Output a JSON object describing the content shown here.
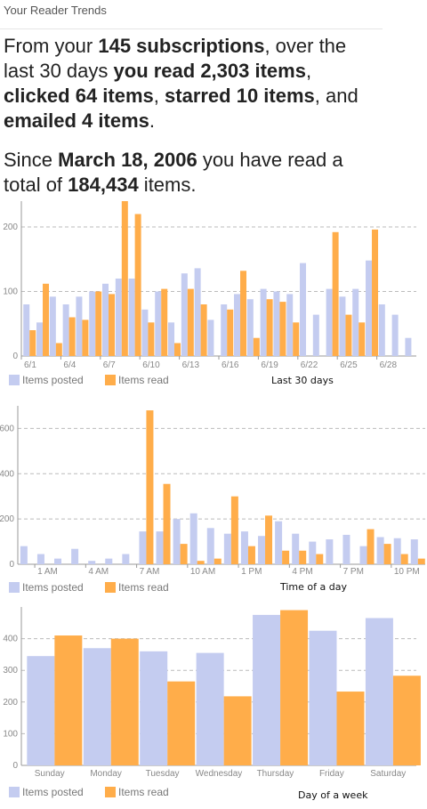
{
  "header": {
    "title": "Your Reader Trends"
  },
  "summary": {
    "p1": [
      "From your ",
      "145 subscriptions",
      ", over the last 30 days ",
      "you read 2,303 items",
      ", ",
      "clicked 64 items",
      ", ",
      "starred 10 items",
      ", and ",
      "emailed 4 items",
      "."
    ],
    "p2": [
      "Since ",
      "March 18, 2006",
      " you have read a total of ",
      "184,434",
      " items."
    ]
  },
  "colors": {
    "posted": "#c4ccf0",
    "read": "#ffad4a",
    "grid": "#bbbbbb",
    "axis": "#999999"
  },
  "chart_data": [
    {
      "id": "last-30-days",
      "type": "bar",
      "caption": "Last 30 days",
      "ylim": [
        0,
        240
      ],
      "yticks": [
        0,
        100,
        200
      ],
      "categories": [
        "6/1",
        "6/2",
        "6/3",
        "6/4",
        "6/5",
        "6/6",
        "6/7",
        "6/8",
        "6/9",
        "6/10",
        "6/11",
        "6/12",
        "6/13",
        "6/14",
        "6/15",
        "6/16",
        "6/17",
        "6/18",
        "6/19",
        "6/20",
        "6/21",
        "6/22",
        "6/23",
        "6/24",
        "6/25",
        "6/26",
        "6/27",
        "6/28",
        "6/29",
        "6/30"
      ],
      "xtick_labels": [
        "6/1",
        "",
        "",
        "6/4",
        "",
        "",
        "6/7",
        "",
        "",
        "6/10",
        "",
        "",
        "6/13",
        "",
        "",
        "6/16",
        "",
        "",
        "6/19",
        "",
        "",
        "6/22",
        "",
        "",
        "6/25",
        "",
        "",
        "6/28",
        "",
        ""
      ],
      "series": [
        {
          "name": "Items posted",
          "values": [
            80,
            52,
            92,
            80,
            92,
            100,
            112,
            120,
            120,
            72,
            100,
            52,
            128,
            136,
            56,
            80,
            96,
            88,
            104,
            100,
            96,
            144,
            64,
            104,
            92,
            104,
            148,
            80,
            64,
            28
          ]
        },
        {
          "name": "Items read",
          "values": [
            40,
            112,
            20,
            60,
            56,
            100,
            96,
            240,
            220,
            52,
            104,
            20,
            104,
            80,
            0,
            72,
            132,
            28,
            88,
            84,
            52,
            0,
            0,
            192,
            64,
            52,
            196,
            0,
            0,
            0
          ]
        }
      ]
    },
    {
      "id": "time-of-day",
      "type": "bar",
      "caption": "Time of a day",
      "ylim": [
        0,
        700
      ],
      "yticks": [
        0,
        200,
        400,
        600
      ],
      "categories": [
        "12 AM",
        "1 AM",
        "2 AM",
        "3 AM",
        "4 AM",
        "5 AM",
        "6 AM",
        "7 AM",
        "8 AM",
        "9 AM",
        "10 AM",
        "11 AM",
        "12 PM",
        "1 PM",
        "2 PM",
        "3 PM",
        "4 PM",
        "5 PM",
        "6 PM",
        "7 PM",
        "8 PM",
        "9 PM",
        "10 PM",
        "11 PM"
      ],
      "xtick_labels": [
        "",
        "1 AM",
        "",
        "",
        "4 AM",
        "",
        "",
        "7 AM",
        "",
        "",
        "10 AM",
        "",
        "",
        "1 PM",
        "",
        "",
        "4 PM",
        "",
        "",
        "7 PM",
        "",
        "",
        "10 PM",
        ""
      ],
      "series": [
        {
          "name": "Items posted",
          "values": [
            80,
            45,
            25,
            68,
            15,
            25,
            45,
            145,
            145,
            200,
            225,
            160,
            135,
            145,
            125,
            190,
            135,
            100,
            110,
            130,
            80,
            120,
            115,
            110
          ]
        },
        {
          "name": "Items read",
          "values": [
            0,
            0,
            0,
            0,
            0,
            0,
            0,
            680,
            355,
            90,
            15,
            25,
            300,
            80,
            215,
            60,
            60,
            45,
            0,
            0,
            155,
            90,
            45,
            25
          ]
        }
      ]
    },
    {
      "id": "day-of-week",
      "type": "bar",
      "caption": "Day of a week",
      "ylim": [
        0,
        500
      ],
      "yticks": [
        0,
        100,
        200,
        300,
        400
      ],
      "categories": [
        "Sunday",
        "Monday",
        "Tuesday",
        "Wednesday",
        "Thursday",
        "Friday",
        "Saturday"
      ],
      "xtick_labels": [
        "Sunday",
        "Monday",
        "Tuesday",
        "Wednesday",
        "Thursday",
        "Friday",
        "Saturday"
      ],
      "series": [
        {
          "name": "Items posted",
          "values": [
            345,
            370,
            360,
            355,
            475,
            425,
            465
          ]
        },
        {
          "name": "Items read",
          "values": [
            410,
            400,
            265,
            218,
            490,
            233,
            283
          ]
        }
      ]
    }
  ]
}
